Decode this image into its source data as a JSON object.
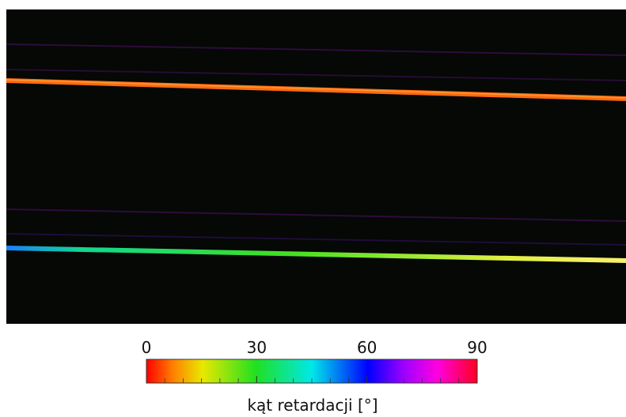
{
  "colorbar": {
    "ticks": [
      0,
      30,
      60,
      90
    ],
    "label": "kąt retardacji [°]"
  }
}
